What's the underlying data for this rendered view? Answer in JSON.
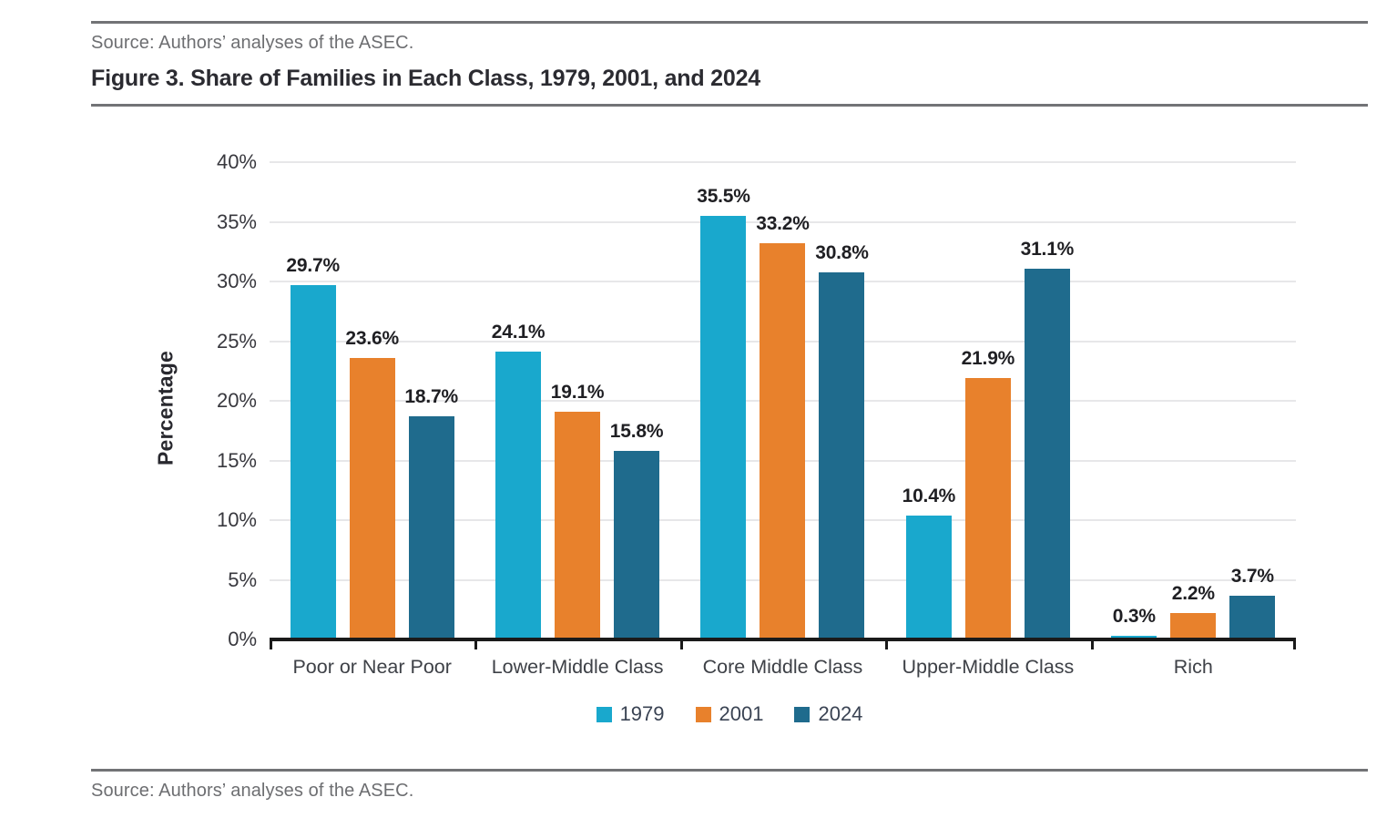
{
  "page": {
    "source_top": "Source: Authors’ analyses of the ASEC.",
    "title": "Figure 3. Share of Families in Each Class, 1979, 2001, and 2024",
    "source_bottom": "Source: Authors’ analyses of the ASEC."
  },
  "chart_data": {
    "type": "bar",
    "title": "Figure 3. Share of Families in Each Class, 1979, 2001, and 2024",
    "ylabel": "Percentage",
    "xlabel": "",
    "categories": [
      "Poor or Near Poor",
      "Lower-Middle Class",
      "Core Middle Class",
      "Upper-Middle Class",
      "Rich"
    ],
    "series": [
      {
        "name": "1979",
        "color": "#19A8CD",
        "values": [
          29.7,
          24.1,
          35.5,
          10.4,
          0.3
        ]
      },
      {
        "name": "2001",
        "color": "#E8812C",
        "values": [
          23.6,
          19.1,
          33.2,
          21.9,
          2.2
        ]
      },
      {
        "name": "2024",
        "color": "#1F6B8D",
        "values": [
          18.7,
          15.8,
          30.8,
          31.1,
          3.7
        ]
      }
    ],
    "ylim": [
      0,
      40
    ],
    "ytick_step": 5,
    "ytick_suffix": "%",
    "data_label_suffix": "%",
    "grid": true,
    "legend_position": "bottom",
    "axis_color": "#1a1a1a",
    "gridline_color": "#e7e7e9"
  }
}
